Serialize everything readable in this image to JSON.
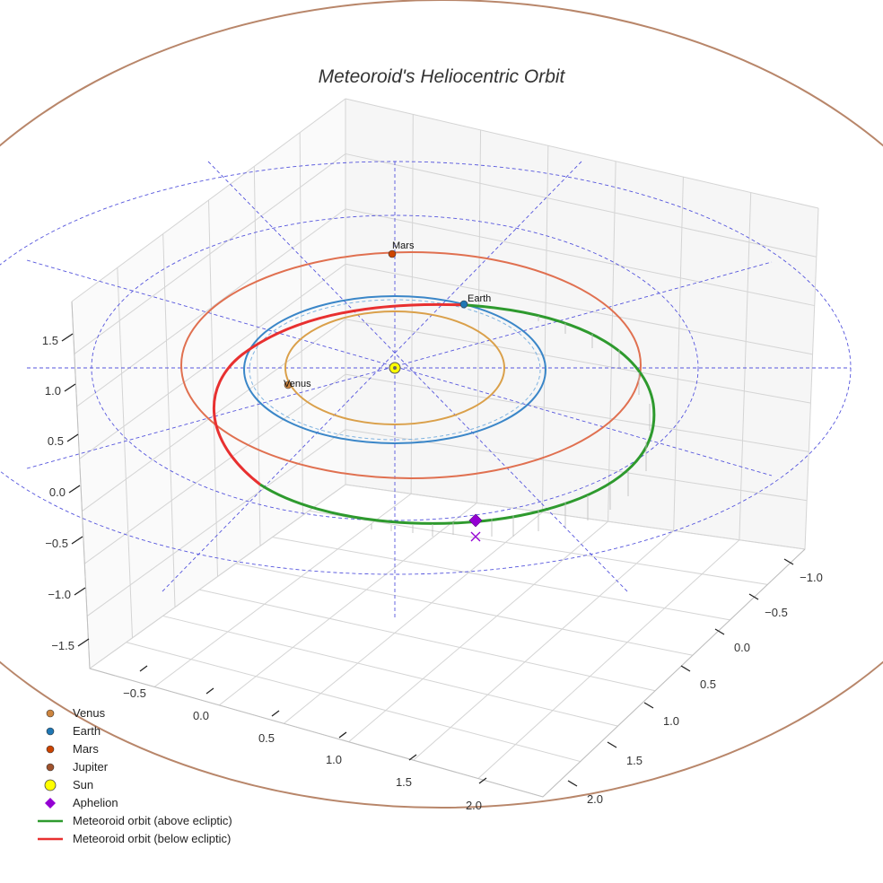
{
  "chart_data": {
    "type": "3d-line",
    "title": "Meteoroid's Heliocentric Orbit",
    "x_ticks": [
      "−1.0",
      "−0.5",
      "0.0",
      "0.5",
      "1.0",
      "1.5",
      "2.0"
    ],
    "y_ticks": [
      "−0.5",
      "0.0",
      "0.5",
      "1.0",
      "1.5",
      "2.0"
    ],
    "z_ticks": [
      "−1.5",
      "−1.0",
      "−0.5",
      "0.0",
      "0.5",
      "1.0",
      "1.5"
    ],
    "planets": [
      {
        "name": "Venus",
        "orbit_radius_au": 0.72,
        "label": "Venus",
        "color": "#cd853f",
        "orbit_color": "#daa04a"
      },
      {
        "name": "Earth",
        "orbit_radius_au": 1.0,
        "label": "Earth",
        "color": "#1f77b4",
        "orbit_color": "#3a86c8"
      },
      {
        "name": "Mars",
        "orbit_radius_au": 1.52,
        "label": "Mars",
        "color": "#cc4400",
        "orbit_color": "#e07050"
      },
      {
        "name": "Jupiter",
        "orbit_radius_au": 5.2,
        "color": "#a0522d",
        "orbit_color": "#b8866a"
      }
    ],
    "reference_circles_au": [
      1.5,
      3.0
    ],
    "meteoroid_orbit": {
      "perihelion_au": 0.98,
      "aphelion_au": 1.9,
      "above_color": "#2e9a2e",
      "below_color": "#e83030"
    },
    "sun": {
      "x": 0,
      "y": 0,
      "z": 0,
      "color": "#ffff00"
    },
    "aphelion": {
      "color": "#9400d3"
    }
  },
  "legend": [
    {
      "label": "Venus",
      "kind": "dot",
      "color": "#cd853f"
    },
    {
      "label": "Earth",
      "kind": "dot",
      "color": "#1f77b4"
    },
    {
      "label": "Mars",
      "kind": "dot",
      "color": "#cc4400"
    },
    {
      "label": "Jupiter",
      "kind": "dot",
      "color": "#a0522d"
    },
    {
      "label": "Sun",
      "kind": "sun",
      "color": "#ffff00"
    },
    {
      "label": "Aphelion",
      "kind": "diamond",
      "color": "#9400d3"
    },
    {
      "label": "Meteoroid orbit (above ecliptic)",
      "kind": "line",
      "color": "#2e9a2e"
    },
    {
      "label": "Meteoroid orbit (below ecliptic)",
      "kind": "line",
      "color": "#e83030"
    }
  ]
}
